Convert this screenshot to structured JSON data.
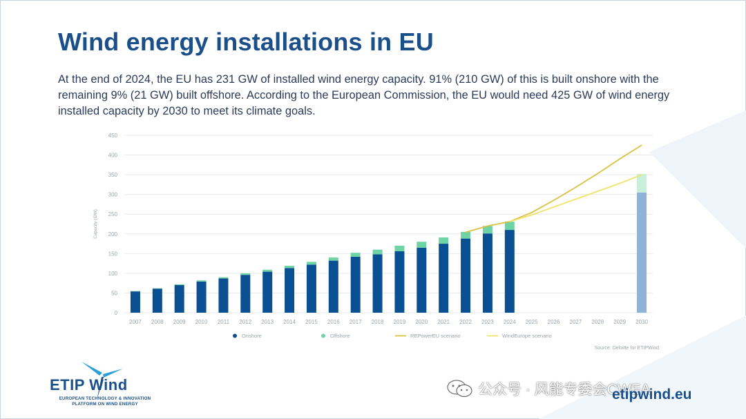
{
  "slide": {
    "title": "Wind energy installations in EU",
    "intro": "At the end of 2024, the EU has 231 GW of installed wind energy capacity. 91% (210 GW) of this is built onshore with the remaining 9% (21 GW) built offshore. According to the European Commission, the EU would need 425 GW of wind energy installed capacity by 2030 to meet its climate goals.",
    "website": "etipwind.eu",
    "watermark": "公众号 · 风能专委会CWEA",
    "logo_icon": "wind-turbine-icon",
    "logo_mark": "ETIP Wind",
    "logo_subtitle": "EUROPEAN TECHNOLOGY & INNOVATION PLATFORM ON WIND ENERGY"
  },
  "chart_data": {
    "type": "bar",
    "title": "",
    "xlabel": "",
    "ylabel": "Capacity (GW)",
    "ylim": [
      0,
      450
    ],
    "yticks": [
      0,
      50,
      100,
      150,
      200,
      250,
      300,
      350,
      400,
      450
    ],
    "grid": true,
    "stacked": true,
    "categories": [
      "2007",
      "2008",
      "2009",
      "2010",
      "2011",
      "2012",
      "2013",
      "2014",
      "2015",
      "2016",
      "2017",
      "2018",
      "2019",
      "2020",
      "2021",
      "2022",
      "2023",
      "2024",
      "2025",
      "2026",
      "2027",
      "2028",
      "2029",
      "2030"
    ],
    "series": [
      {
        "name": "Onshore",
        "color": "#0b4f93",
        "values": [
          54,
          61,
          70,
          79,
          87,
          96,
          104,
          113,
          122,
          132,
          142,
          148,
          156,
          165,
          175,
          188,
          201,
          210,
          null,
          null,
          null,
          null,
          null,
          305
        ]
      },
      {
        "name": "Offshore",
        "color": "#6fd3a6",
        "values": [
          1,
          1,
          2,
          3,
          3,
          4,
          5,
          6,
          7,
          8,
          10,
          12,
          14,
          15,
          16,
          17,
          19,
          21,
          null,
          null,
          null,
          null,
          null,
          47
        ]
      }
    ],
    "lines": [
      {
        "name": "REPowerEU scenario",
        "color": "#d9c23f",
        "x": [
          "2022",
          "2023",
          "2024",
          "2025",
          "2026",
          "2027",
          "2028",
          "2029",
          "2030"
        ],
        "values": [
          204,
          220,
          231,
          254,
          285,
          318,
          353,
          390,
          425
        ]
      },
      {
        "name": "WindEurope scenario",
        "color": "#f0e36a",
        "x": [
          "2024",
          "2025",
          "2026",
          "2027",
          "2028",
          "2029",
          "2030"
        ],
        "values": [
          231,
          248,
          268,
          288,
          308,
          328,
          350
        ]
      }
    ],
    "highlight": {
      "category": "2030",
      "onshore_color": "#8fb3d6",
      "offshore_color": "#c8efd9"
    },
    "legend_position": "bottom",
    "source": "Source: Deloitte for ETIPWind"
  }
}
